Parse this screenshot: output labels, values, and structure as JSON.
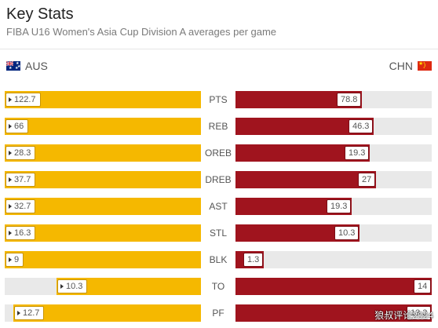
{
  "header": {
    "title": "Key Stats",
    "subtitle": "FIBA U16 Women's Asia Cup Division A averages per game"
  },
  "teams": {
    "left": {
      "name": "AUS",
      "flag": "australia-flag",
      "color": "#f5b800"
    },
    "right": {
      "name": "CHN",
      "flag": "china-flag",
      "color": "#a0141e"
    }
  },
  "colors": {
    "left_bar": "#f5b800",
    "right_bar": "#a0141e",
    "track": "#e9e9e9"
  },
  "stats": [
    {
      "label": "PTS",
      "left": "122.7",
      "right": "78.8",
      "left_fraction": 1.0,
      "right_fraction": 0.642
    },
    {
      "label": "REB",
      "left": "66",
      "right": "46.3",
      "left_fraction": 1.0,
      "right_fraction": 0.702
    },
    {
      "label": "OREB",
      "left": "28.3",
      "right": "19.3",
      "left_fraction": 1.0,
      "right_fraction": 0.682
    },
    {
      "label": "DREB",
      "left": "37.7",
      "right": "27",
      "left_fraction": 1.0,
      "right_fraction": 0.716
    },
    {
      "label": "AST",
      "left": "32.7",
      "right": "19.3",
      "left_fraction": 1.0,
      "right_fraction": 0.59
    },
    {
      "label": "STL",
      "left": "16.3",
      "right": "10.3",
      "left_fraction": 1.0,
      "right_fraction": 0.632
    },
    {
      "label": "BLK",
      "left": "9",
      "right": "1.3",
      "left_fraction": 1.0,
      "right_fraction": 0.144
    },
    {
      "label": "TO",
      "left": "10.3",
      "right": "14",
      "left_fraction": 0.736,
      "right_fraction": 1.0
    },
    {
      "label": "PF",
      "left": "12.7",
      "right": "13.3",
      "left_fraction": 0.955,
      "right_fraction": 1.0
    }
  ],
  "watermark": "狼叔评论2024"
}
